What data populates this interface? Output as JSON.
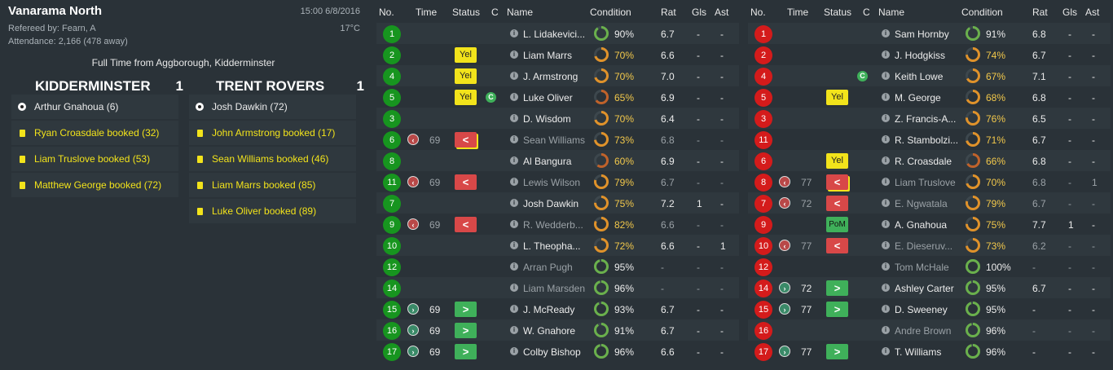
{
  "match": {
    "competition": "Vanarama North",
    "kickoff": "15:00 6/8/2016",
    "referee": "Refereed by: Fearn, A",
    "temperature": "17°C",
    "attendance": "Attendance: 2,166 (478 away)",
    "result_line": "Full Time from Aggborough, Kidderminster",
    "home": {
      "name": "KIDDERMINSTER",
      "score": "1"
    },
    "away": {
      "name": "TRENT ROVERS",
      "score": "1"
    }
  },
  "home_events": [
    {
      "type": "goal",
      "icon": "football-icon",
      "text": "Arthur Gnahoua (6)"
    },
    {
      "type": "card",
      "icon": "yellow-card-icon",
      "text": "Ryan Croasdale booked (32)"
    },
    {
      "type": "card",
      "icon": "yellow-card-icon",
      "text": "Liam Truslove booked (53)"
    },
    {
      "type": "card",
      "icon": "yellow-card-icon",
      "text": "Matthew George booked (72)"
    }
  ],
  "away_events": [
    {
      "type": "goal",
      "icon": "football-icon",
      "text": "Josh Dawkin (72)"
    },
    {
      "type": "card",
      "icon": "yellow-card-icon",
      "text": "John Armstrong booked (17)"
    },
    {
      "type": "card",
      "icon": "yellow-card-icon",
      "text": "Sean Williams booked (46)"
    },
    {
      "type": "card",
      "icon": "yellow-card-icon",
      "text": "Liam Marrs booked (85)"
    },
    {
      "type": "card",
      "icon": "yellow-card-icon",
      "text": "Luke Oliver booked (89)"
    }
  ],
  "columns": {
    "no": "No.",
    "time": "Time",
    "status": "Status",
    "c": "C",
    "name": "Name",
    "condition": "Condition",
    "rat": "Rat",
    "gls": "Gls",
    "ast": "Ast"
  },
  "colors": {
    "home": "#17951f",
    "away": "#d41b1b",
    "yellow": "#f2e31b",
    "ring_high": "#6ab04c",
    "ring_mid": "#e0922a",
    "ring_low": "#c0622a"
  },
  "away_players": [
    {
      "no": "1",
      "time": "",
      "sub": "",
      "status": "",
      "capt": false,
      "name": "L. Lidakevici...",
      "out": false,
      "cond": "90%",
      "rat": "6.7",
      "gls": "-",
      "ast": "-"
    },
    {
      "no": "2",
      "time": "",
      "sub": "",
      "status": "Yel",
      "capt": false,
      "name": "Liam Marrs",
      "out": false,
      "cond": "70%",
      "rat": "6.6",
      "gls": "-",
      "ast": "-"
    },
    {
      "no": "4",
      "time": "",
      "sub": "",
      "status": "Yel",
      "capt": false,
      "name": "J. Armstrong",
      "out": false,
      "cond": "70%",
      "rat": "7.0",
      "gls": "-",
      "ast": "-"
    },
    {
      "no": "5",
      "time": "",
      "sub": "",
      "status": "Yel",
      "capt": true,
      "name": "Luke Oliver",
      "out": false,
      "cond": "65%",
      "rat": "6.9",
      "gls": "-",
      "ast": "-"
    },
    {
      "no": "3",
      "time": "",
      "sub": "",
      "status": "",
      "capt": false,
      "name": "D. Wisdom",
      "out": false,
      "cond": "70%",
      "rat": "6.4",
      "gls": "-",
      "ast": "-"
    },
    {
      "no": "6",
      "time": "69",
      "sub": "off",
      "status": "<",
      "yb": true,
      "capt": false,
      "name": "Sean Williams",
      "out": true,
      "cond": "73%",
      "rat": "6.8",
      "gls": "-",
      "ast": "-"
    },
    {
      "no": "8",
      "time": "",
      "sub": "",
      "status": "",
      "capt": false,
      "name": "Al Bangura",
      "out": false,
      "cond": "60%",
      "rat": "6.9",
      "gls": "-",
      "ast": "-"
    },
    {
      "no": "11",
      "time": "69",
      "sub": "off",
      "status": "<",
      "capt": false,
      "name": "Lewis Wilson",
      "out": true,
      "cond": "79%",
      "rat": "6.7",
      "gls": "-",
      "ast": "-"
    },
    {
      "no": "7",
      "time": "",
      "sub": "",
      "status": "",
      "capt": false,
      "name": "Josh Dawkin",
      "out": false,
      "cond": "75%",
      "rat": "7.2",
      "gls": "1",
      "ast": "-"
    },
    {
      "no": "9",
      "time": "69",
      "sub": "off",
      "status": "<",
      "capt": false,
      "name": "R. Wedderb...",
      "out": true,
      "cond": "82%",
      "rat": "6.6",
      "gls": "-",
      "ast": "-"
    },
    {
      "no": "10",
      "time": "",
      "sub": "",
      "status": "",
      "capt": false,
      "name": "L. Theopha...",
      "out": false,
      "cond": "72%",
      "rat": "6.6",
      "gls": "-",
      "ast": "1"
    },
    {
      "no": "12",
      "time": "",
      "sub": "",
      "status": "",
      "capt": false,
      "name": "Arran Pugh",
      "out": true,
      "cond": "95%",
      "rat": "-",
      "gls": "-",
      "ast": "-"
    },
    {
      "no": "14",
      "time": "",
      "sub": "",
      "status": "",
      "capt": false,
      "name": "Liam Marsden",
      "out": true,
      "cond": "96%",
      "rat": "-",
      "gls": "-",
      "ast": "-"
    },
    {
      "no": "15",
      "time": "69",
      "sub": "on",
      "status": ">",
      "capt": false,
      "name": "J. McReady",
      "out": false,
      "cond": "93%",
      "rat": "6.7",
      "gls": "-",
      "ast": "-"
    },
    {
      "no": "16",
      "time": "69",
      "sub": "on",
      "status": ">",
      "capt": false,
      "name": "W. Gnahore",
      "out": false,
      "cond": "91%",
      "rat": "6.7",
      "gls": "-",
      "ast": "-"
    },
    {
      "no": "17",
      "time": "69",
      "sub": "on",
      "status": ">",
      "capt": false,
      "name": "Colby Bishop",
      "out": false,
      "cond": "96%",
      "rat": "6.6",
      "gls": "-",
      "ast": "-"
    }
  ],
  "home_players": [
    {
      "no": "1",
      "time": "",
      "sub": "",
      "status": "",
      "capt": false,
      "name": "Sam Hornby",
      "out": false,
      "cond": "91%",
      "rat": "6.8",
      "gls": "-",
      "ast": "-"
    },
    {
      "no": "2",
      "time": "",
      "sub": "",
      "status": "",
      "capt": false,
      "name": "J. Hodgkiss",
      "out": false,
      "cond": "74%",
      "rat": "6.7",
      "gls": "-",
      "ast": "-"
    },
    {
      "no": "4",
      "time": "",
      "sub": "",
      "status": "",
      "capt": true,
      "name": "Keith Lowe",
      "out": false,
      "cond": "67%",
      "rat": "7.1",
      "gls": "-",
      "ast": "-"
    },
    {
      "no": "5",
      "time": "",
      "sub": "",
      "status": "Yel",
      "capt": false,
      "name": "M. George",
      "out": false,
      "cond": "68%",
      "rat": "6.8",
      "gls": "-",
      "ast": "-"
    },
    {
      "no": "3",
      "time": "",
      "sub": "",
      "status": "",
      "capt": false,
      "name": "Z. Francis-A...",
      "out": false,
      "cond": "76%",
      "rat": "6.5",
      "gls": "-",
      "ast": "-"
    },
    {
      "no": "11",
      "time": "",
      "sub": "",
      "status": "",
      "capt": false,
      "name": "R. Stambolzi...",
      "out": false,
      "cond": "71%",
      "rat": "6.7",
      "gls": "-",
      "ast": "-"
    },
    {
      "no": "6",
      "time": "",
      "sub": "",
      "status": "Yel",
      "capt": false,
      "name": "R. Croasdale",
      "out": false,
      "cond": "66%",
      "rat": "6.8",
      "gls": "-",
      "ast": "-"
    },
    {
      "no": "8",
      "time": "77",
      "sub": "off",
      "status": "<",
      "yb": true,
      "capt": false,
      "name": "Liam Truslove",
      "out": true,
      "cond": "70%",
      "rat": "6.8",
      "gls": "-",
      "ast": "1"
    },
    {
      "no": "7",
      "time": "72",
      "sub": "off",
      "status": "<",
      "capt": false,
      "name": "E. Ngwatala",
      "out": true,
      "cond": "79%",
      "rat": "6.7",
      "gls": "-",
      "ast": "-"
    },
    {
      "no": "9",
      "time": "",
      "sub": "",
      "status": "PoM",
      "capt": false,
      "name": "A. Gnahoua",
      "out": false,
      "cond": "75%",
      "rat": "7.7",
      "gls": "1",
      "ast": "-"
    },
    {
      "no": "10",
      "time": "77",
      "sub": "off",
      "status": "<",
      "capt": false,
      "name": "E. Dieseruv...",
      "out": true,
      "cond": "73%",
      "rat": "6.2",
      "gls": "-",
      "ast": "-"
    },
    {
      "no": "12",
      "time": "",
      "sub": "",
      "status": "",
      "capt": false,
      "name": "Tom McHale",
      "out": true,
      "cond": "100%",
      "rat": "-",
      "gls": "-",
      "ast": "-"
    },
    {
      "no": "14",
      "time": "72",
      "sub": "on",
      "status": ">",
      "capt": false,
      "name": "Ashley Carter",
      "out": false,
      "cond": "95%",
      "rat": "6.7",
      "gls": "-",
      "ast": "-"
    },
    {
      "no": "15",
      "time": "77",
      "sub": "on",
      "status": ">",
      "capt": false,
      "name": "D. Sweeney",
      "out": false,
      "cond": "95%",
      "rat": "-",
      "gls": "-",
      "ast": "-"
    },
    {
      "no": "16",
      "time": "",
      "sub": "",
      "status": "",
      "capt": false,
      "name": "Andre Brown",
      "out": true,
      "cond": "96%",
      "rat": "-",
      "gls": "-",
      "ast": "-"
    },
    {
      "no": "17",
      "time": "77",
      "sub": "on",
      "status": ">",
      "capt": false,
      "name": "T. Williams",
      "out": false,
      "cond": "96%",
      "rat": "-",
      "gls": "-",
      "ast": "-"
    }
  ]
}
